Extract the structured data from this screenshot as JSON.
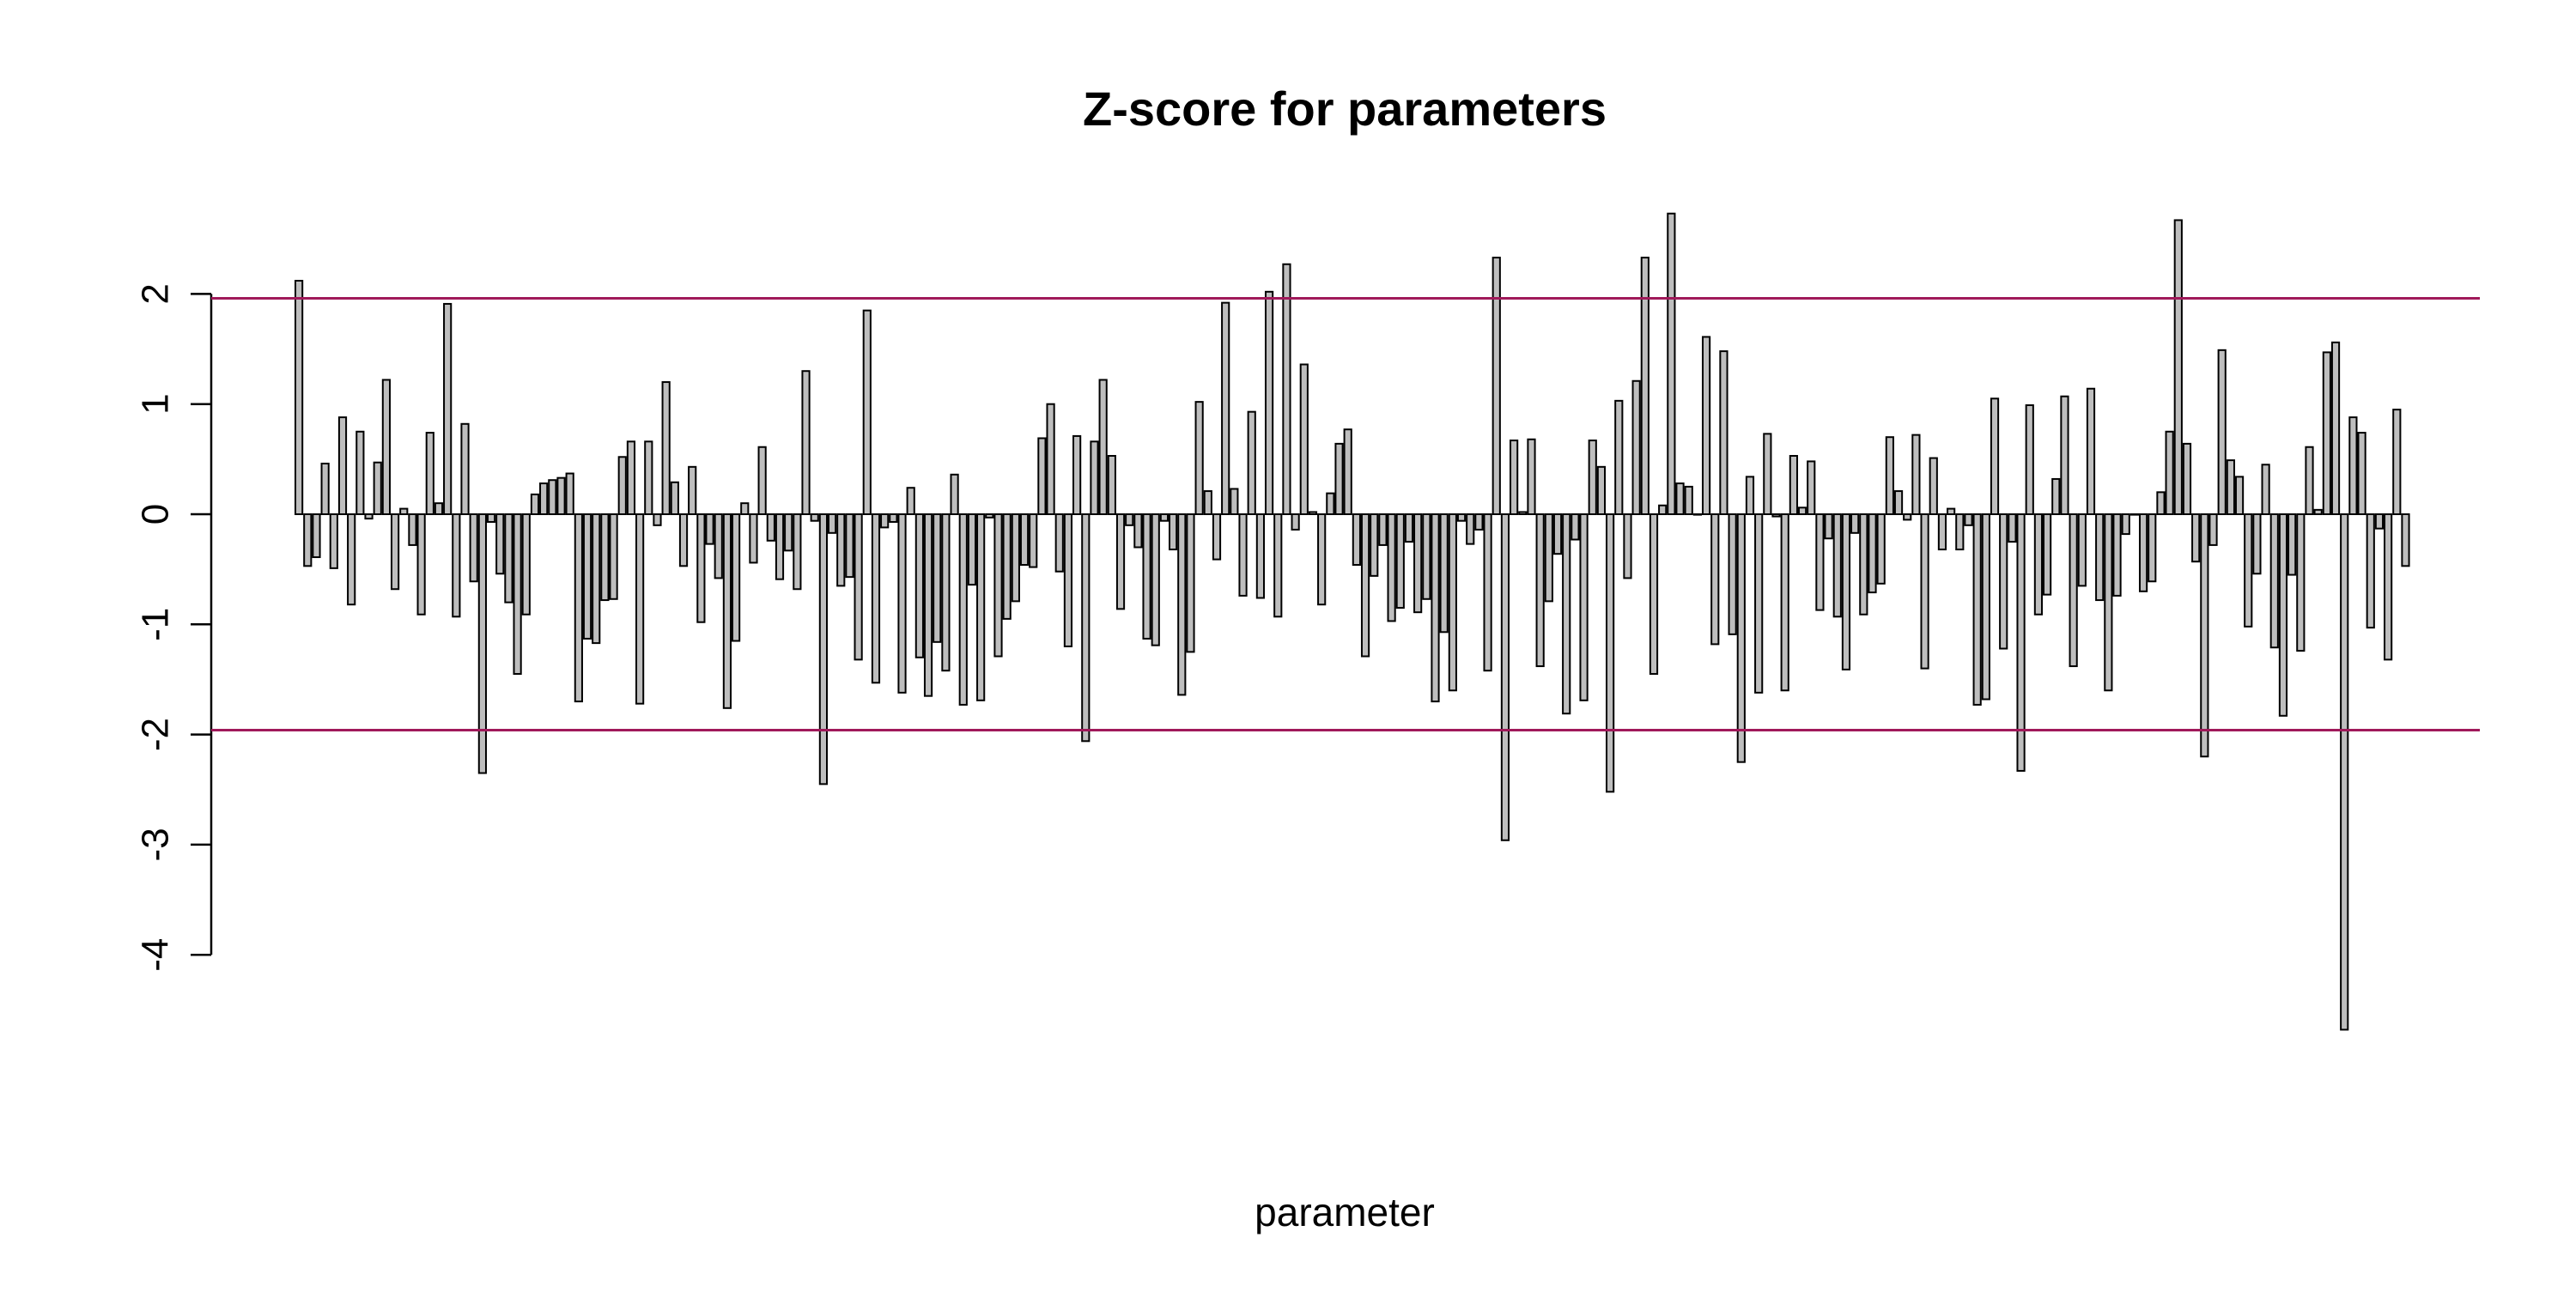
{
  "chart_data": {
    "type": "bar",
    "title": "Z-score for parameters",
    "xlabel": "parameter",
    "ylabel": "",
    "ylim": [
      -4.8,
      2.8
    ],
    "yticks": [
      2,
      1,
      0,
      -1,
      -2,
      -3,
      -4
    ],
    "ytick_labels": [
      "2",
      "1",
      "0",
      "-1",
      "-2",
      "-3",
      "-4"
    ],
    "grid": false,
    "legend": "none",
    "colors": {
      "bar_fill": "#bebebe",
      "bar_stroke": "#000000",
      "reference_line": "#a0195a"
    },
    "reference_lines": [
      1.96,
      -1.96
    ],
    "values": [
      2.12,
      -0.47,
      -0.39,
      0.46,
      -0.49,
      0.88,
      -0.82,
      0.75,
      -0.04,
      0.47,
      1.22,
      -0.68,
      0.05,
      -0.28,
      -0.91,
      0.74,
      0.1,
      1.91,
      -0.93,
      0.82,
      -0.61,
      -2.35,
      -0.07,
      -0.54,
      -0.8,
      -1.45,
      -0.91,
      0.18,
      0.28,
      0.31,
      0.33,
      0.37,
      -1.7,
      -1.13,
      -1.17,
      -0.78,
      -0.77,
      0.52,
      0.66,
      -1.72,
      0.66,
      -0.1,
      1.2,
      0.29,
      -0.47,
      0.43,
      -0.98,
      -0.27,
      -0.58,
      -1.76,
      -1.15,
      0.1,
      -0.44,
      0.61,
      -0.24,
      -0.59,
      -0.33,
      -0.68,
      1.3,
      -0.06,
      -2.45,
      -0.17,
      -0.65,
      -0.57,
      -1.32,
      1.85,
      -1.53,
      -0.12,
      -0.07,
      -1.62,
      0.24,
      -1.3,
      -1.65,
      -1.16,
      -1.42,
      0.36,
      -1.73,
      -0.64,
      -1.69,
      -0.03,
      -1.29,
      -0.95,
      -0.79,
      -0.46,
      -0.48,
      0.69,
      1.0,
      -0.52,
      -1.2,
      0.71,
      -2.06,
      0.66,
      1.22,
      0.53,
      -0.86,
      -0.1,
      -0.3,
      -1.13,
      -1.19,
      -0.06,
      -0.32,
      -1.64,
      -1.25,
      1.02,
      0.21,
      -0.41,
      1.92,
      0.23,
      -0.74,
      0.93,
      -0.76,
      2.02,
      -0.93,
      2.27,
      -0.14,
      1.36,
      0.02,
      -0.82,
      0.19,
      0.64,
      0.77,
      -0.46,
      -1.29,
      -0.56,
      -0.28,
      -0.97,
      -0.85,
      -0.25,
      -0.89,
      -0.77,
      -1.7,
      -1.07,
      -1.6,
      -0.06,
      -0.27,
      -0.14,
      -1.42,
      2.33,
      -2.96,
      0.67,
      0.02,
      0.68,
      -1.38,
      -0.79,
      -0.36,
      -1.81,
      -0.23,
      -1.69,
      0.67,
      0.43,
      -2.52,
      1.03,
      -0.58,
      1.21,
      2.33,
      -1.45,
      0.08,
      2.73,
      0.28,
      0.25,
      0.0,
      1.61,
      -1.18,
      1.48,
      -1.09,
      -2.25,
      0.34,
      -1.62,
      0.73,
      -0.02,
      -1.6,
      0.53,
      0.06,
      0.48,
      -0.87,
      -0.22,
      -0.93,
      -1.41,
      -0.17,
      -0.91,
      -0.71,
      -0.63,
      0.7,
      0.21,
      -0.05,
      0.72,
      -1.4,
      0.51,
      -0.32,
      0.05,
      -0.32,
      -0.1,
      -1.73,
      -1.68,
      1.05,
      -1.22,
      -0.25,
      -2.33,
      0.99,
      -0.91,
      -0.73,
      0.32,
      1.07,
      -1.38,
      -0.65,
      1.14,
      -0.78,
      -1.6,
      -0.74,
      -0.18,
      0.0,
      -0.7,
      -0.61,
      0.2,
      0.75,
      2.67,
      0.64,
      -0.43,
      -2.2,
      -0.28,
      1.49,
      0.49,
      0.34,
      -1.02,
      -0.54,
      0.45,
      -1.21,
      -1.83,
      -0.55,
      -1.24,
      0.61,
      0.04,
      1.47,
      1.56,
      -4.68,
      0.88,
      0.74,
      -1.03,
      -0.13,
      -1.32,
      0.95,
      -0.47
    ]
  }
}
